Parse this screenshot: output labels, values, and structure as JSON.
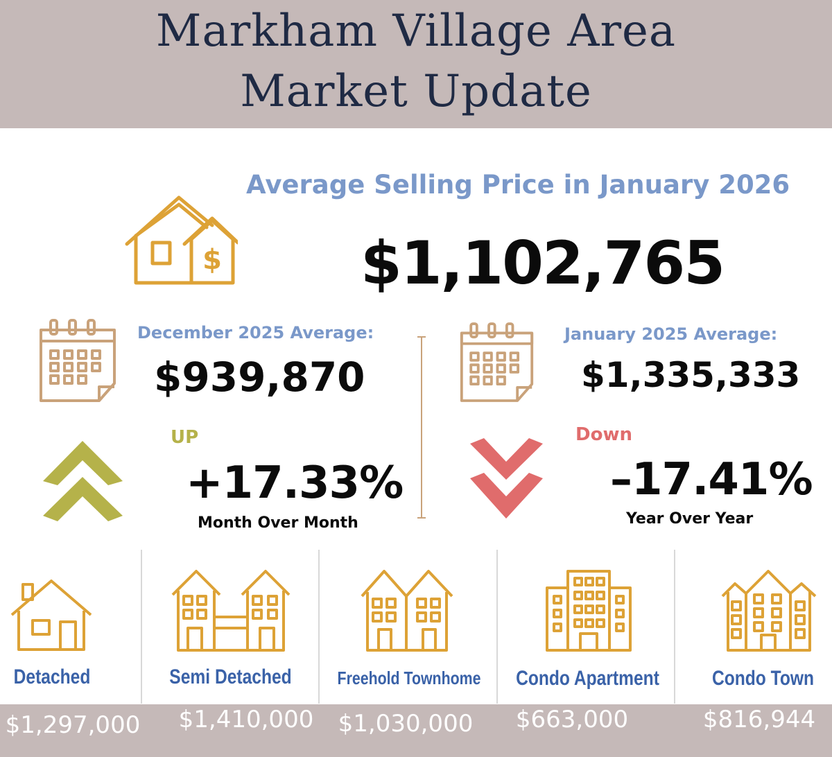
{
  "header": {
    "title_line1": "Markham Village Area",
    "title_line2": "Market Update"
  },
  "main": {
    "subheading": "Average Selling Price in January 2026",
    "average_price": "$1,102,765",
    "icon": "house-dollar-icon"
  },
  "comparisons": [
    {
      "label": "December 2025 Average:",
      "value": "$939,870",
      "direction_label": "UP",
      "change": "+17.33%",
      "period": "Month Over Month",
      "icon": "calendar-icon",
      "arrow_icon": "double-chevron-up-icon",
      "color": "#b5b24a"
    },
    {
      "label": "January 2025 Average:",
      "value": "$1,335,333",
      "direction_label": "Down",
      "change": "–17.41%",
      "period": "Year Over Year",
      "icon": "calendar-icon",
      "arrow_icon": "double-chevron-down-icon",
      "color": "#e06c6c"
    }
  ],
  "categories": [
    {
      "name": "Detached",
      "price": "$1,297,000",
      "icon": "detached-house-icon"
    },
    {
      "name": "Semi Detached",
      "price": "$1,410,000",
      "icon": "semi-detached-house-icon"
    },
    {
      "name": "Freehold Townhome",
      "price": "$1,030,000",
      "icon": "townhome-icon"
    },
    {
      "name": "Condo Apartment",
      "price": "$663,000",
      "icon": "apartment-building-icon"
    },
    {
      "name": "Condo Town",
      "price": "$816,944",
      "icon": "condo-town-icon"
    }
  ],
  "colors": {
    "header_bg": "#c5b9b8",
    "title": "#1f2a44",
    "subheading": "#7a98c9",
    "icon_gold": "#dda236",
    "icon_tan": "#c9a27a",
    "up": "#b5b24a",
    "down": "#e06c6c",
    "category_label": "#3a62a8"
  }
}
